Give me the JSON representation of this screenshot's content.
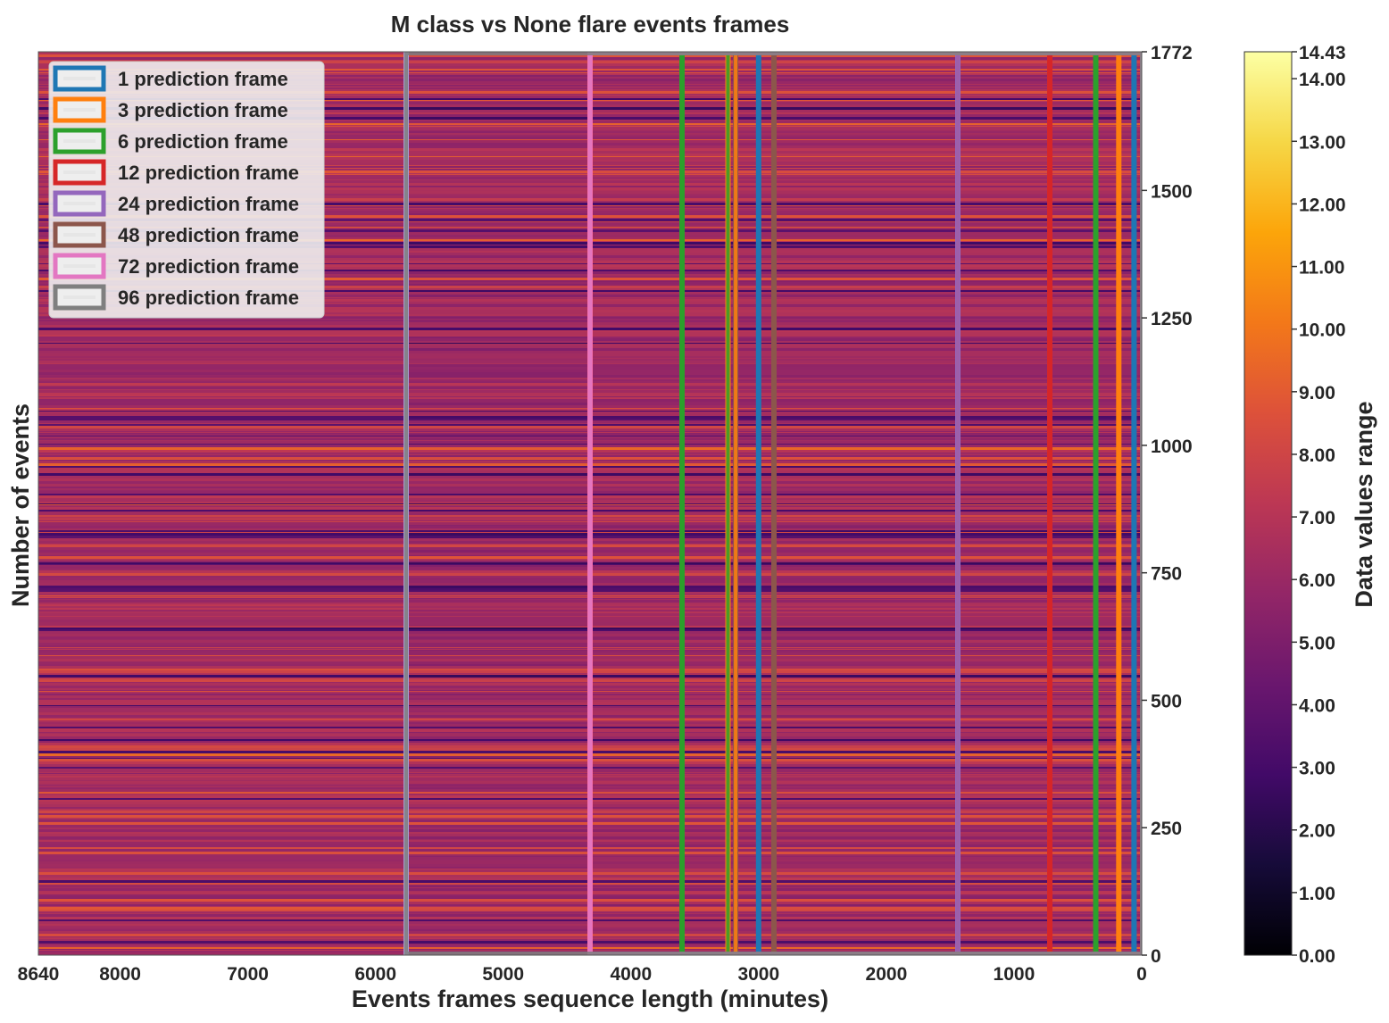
{
  "chart_data": {
    "type": "heatmap",
    "title": "M class vs None flare events frames",
    "xlabel": "Events frames sequence length (minutes)",
    "ylabel": "Number of events",
    "xlim": [
      8640,
      0
    ],
    "ylim": [
      0,
      1772
    ],
    "x_ticks": [
      8640,
      8000,
      7000,
      6000,
      5000,
      4000,
      3000,
      2000,
      1000,
      0
    ],
    "x_tick_labels": [
      "8640",
      "8000",
      "7000",
      "6000",
      "5000",
      "4000",
      "3000",
      "2000",
      "1000",
      "0"
    ],
    "y_ticks": [
      0,
      250,
      500,
      750,
      1000,
      1250,
      1500,
      1772
    ],
    "y_tick_labels": [
      "0",
      "250",
      "500",
      "750",
      "1000",
      "1250",
      "1500",
      "1772"
    ],
    "colorbar": {
      "label": "Data values range",
      "colormap": "inferno",
      "range": [
        0,
        14.43
      ],
      "ticks": [
        0,
        1,
        2,
        3,
        4,
        5,
        6,
        7,
        8,
        9,
        10,
        11,
        12,
        13,
        14,
        14.43
      ],
      "tick_labels": [
        "0.00",
        "1.00",
        "2.00",
        "3.00",
        "4.00",
        "5.00",
        "6.00",
        "7.00",
        "8.00",
        "9.00",
        "10.00",
        "11.00",
        "12.00",
        "13.00",
        "14.00",
        "14.43"
      ]
    },
    "legend_position": "upper-left",
    "series": [
      {
        "name": "1 prediction frame",
        "color": "#1f77b4",
        "x_start": 60,
        "x_end": 0
      },
      {
        "name": "3 prediction frame",
        "color": "#ff7f0e",
        "x_start": 3240,
        "x_end": 3180
      },
      {
        "name": "6 prediction frame",
        "color": "#2ca02c",
        "x_start": 3600,
        "x_end": 3240
      },
      {
        "name": "12 prediction frame",
        "color": "#d62728",
        "x_start": 1440,
        "x_end": 720
      },
      {
        "name": "24 prediction frame",
        "color": "#9467bd",
        "x_start": 1440,
        "x_end": 0
      },
      {
        "name": "48 prediction frame",
        "color": "#8c564b",
        "x_start": 2880,
        "x_end": 0
      },
      {
        "name": "72 prediction frame",
        "color": "#e377c2",
        "x_start": 4320,
        "x_end": 0
      },
      {
        "name": "96 prediction frame",
        "color": "#7f7f7f",
        "x_start": 5760,
        "x_end": 0
      }
    ],
    "overlay_lines": [
      {
        "x": 5760,
        "color": "#a79bd0"
      },
      {
        "x": 4320,
        "color": "#f06fb0"
      },
      {
        "x": 3600,
        "color": "#2ca02c"
      },
      {
        "x": 3240,
        "color": "#ff7f0e"
      },
      {
        "x": 3180,
        "color": "#8c564b"
      },
      {
        "x": 3000,
        "color": "#1f77b4"
      },
      {
        "x": 2880,
        "color": "#8c564b"
      },
      {
        "x": 1440,
        "color": "#9467bd"
      },
      {
        "x": 720,
        "color": "#d62728"
      },
      {
        "x": 360,
        "color": "#2ca02c"
      },
      {
        "x": 180,
        "color": "#ff7f0e"
      },
      {
        "x": 60,
        "color": "#1f77b4"
      }
    ]
  }
}
